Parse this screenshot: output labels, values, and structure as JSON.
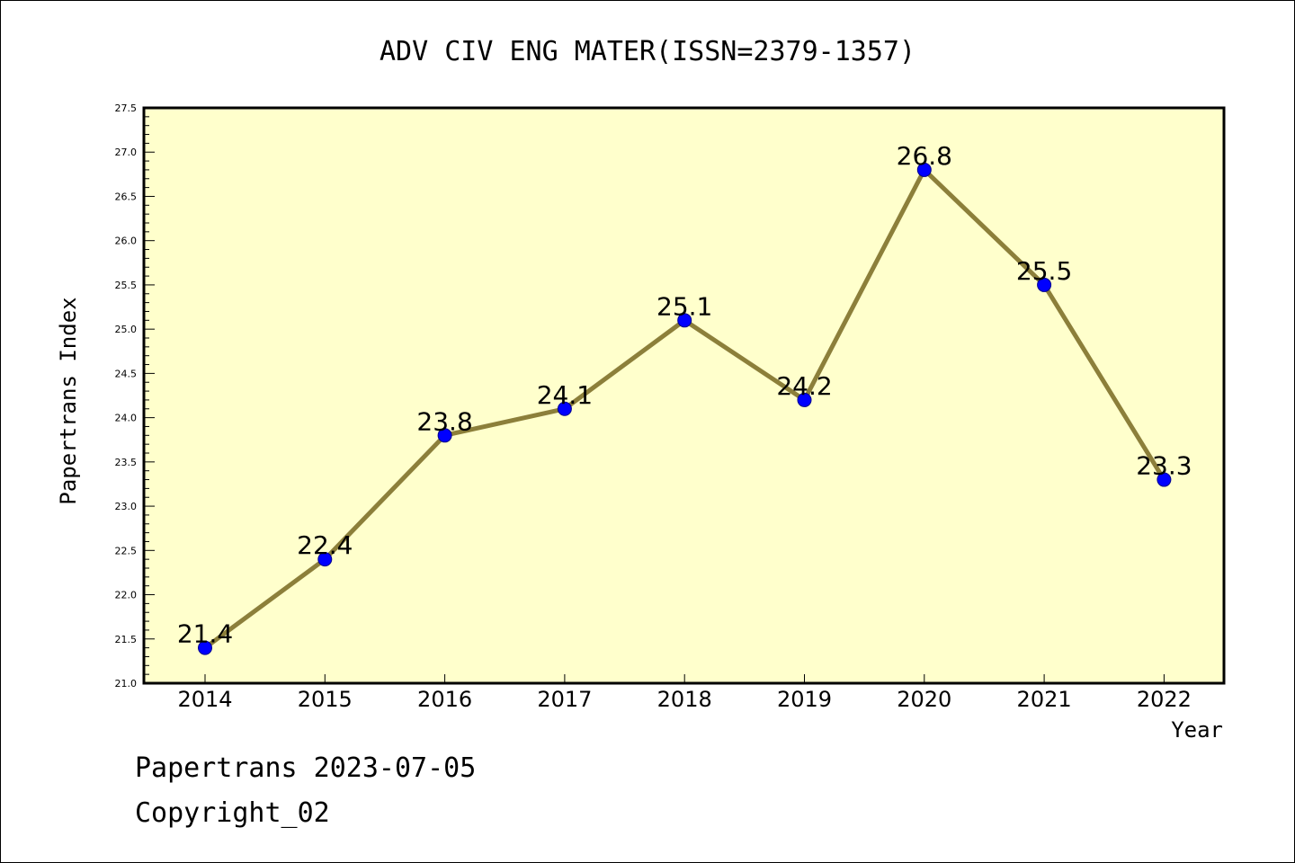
{
  "chart_data": {
    "type": "line",
    "title": "ADV CIV ENG MATER(ISSN=2379-1357)",
    "xlabel": "Year",
    "ylabel": "Papertrans Index",
    "categories": [
      "2014",
      "2015",
      "2016",
      "2017",
      "2018",
      "2019",
      "2020",
      "2021",
      "2022"
    ],
    "values": [
      21.4,
      22.4,
      23.8,
      24.1,
      25.1,
      24.2,
      26.8,
      25.5,
      23.3
    ],
    "data_labels": [
      "21.4",
      "22.4",
      "23.8",
      "24.1",
      "25.1",
      "24.2",
      "26.8",
      "25.5",
      "23.3"
    ],
    "ylim": [
      21.0,
      27.5
    ],
    "yticks": [
      "21.0",
      "21.5",
      "22.0",
      "22.5",
      "23.0",
      "23.5",
      "24.0",
      "24.5",
      "25.0",
      "25.5",
      "26.0",
      "26.5",
      "27.0",
      "27.5"
    ],
    "grid": false,
    "legend": "none",
    "colors": {
      "plot_background": "#ffffcc",
      "line": "#8c7f3a",
      "marker": "#0000ff"
    }
  },
  "footer": {
    "line1": "Papertrans 2023-07-05",
    "line2": "Copyright_02"
  }
}
